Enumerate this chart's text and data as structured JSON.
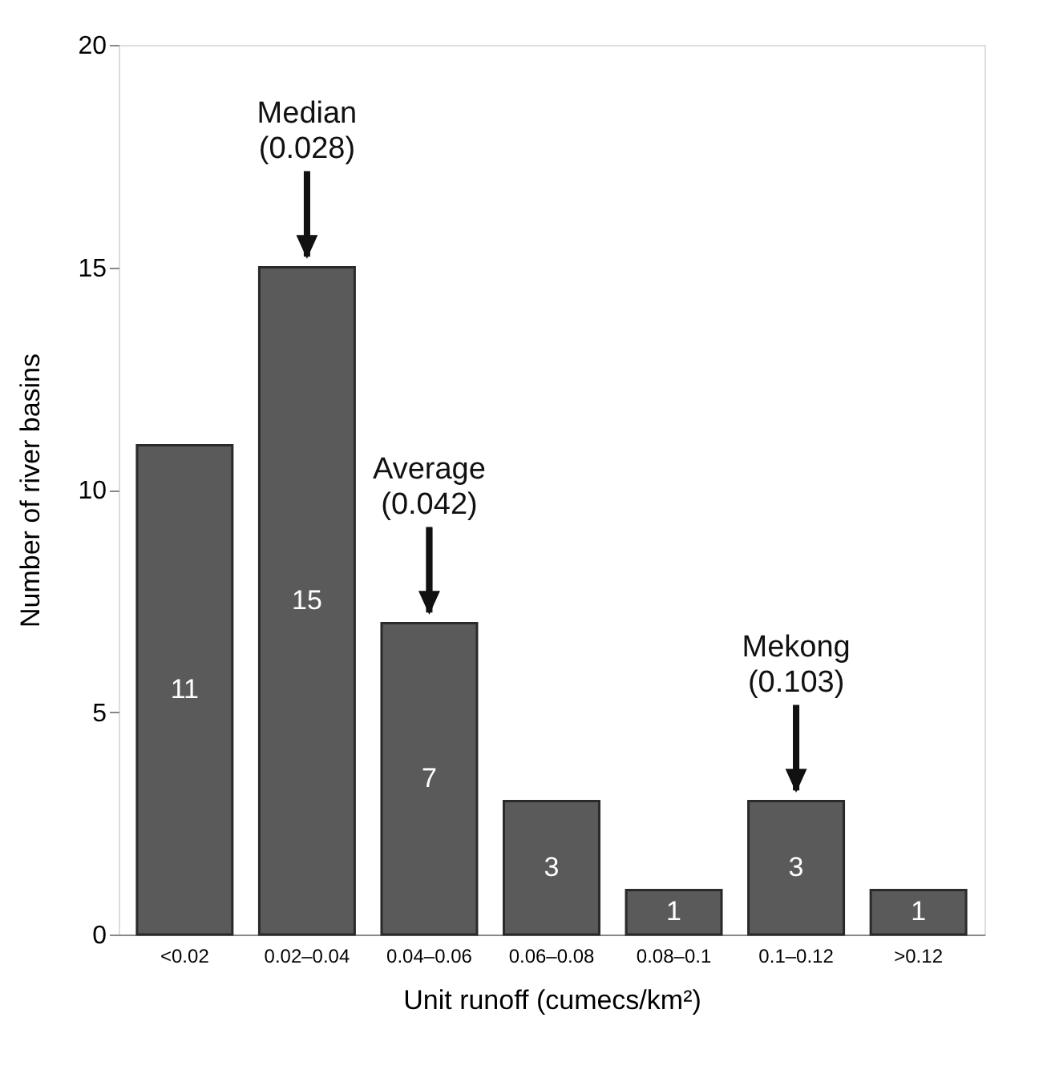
{
  "chart_data": {
    "type": "bar",
    "xlabel": "Unit runoff (cumecs/km²)",
    "ylabel": "Number of river basins",
    "categories": [
      "<0.02",
      "0.02–0.04",
      "0.04–0.06",
      "0.06–0.08",
      "0.08–0.1",
      "0.1–0.12",
      ">0.12"
    ],
    "values": [
      11,
      15,
      7,
      3,
      1,
      3,
      1
    ],
    "color": "#5a5a5a",
    "ylim": [
      0,
      20
    ],
    "yticks": [
      0,
      5,
      10,
      15,
      20
    ],
    "grid": false,
    "data_labels": true,
    "annotations": [
      {
        "text": "Median\n(0.028)",
        "x": "0.02–0.04",
        "y": 15
      },
      {
        "text": "Average\n(0.042)",
        "x": "0.04–0.06",
        "y": 7
      },
      {
        "text": "Mekong\n(0.103)",
        "x": "0.1–0.12",
        "y": 3
      }
    ]
  }
}
